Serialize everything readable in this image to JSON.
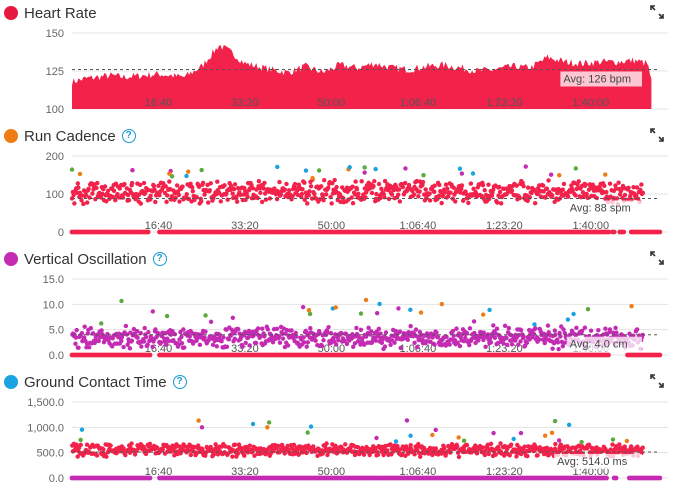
{
  "panels": [
    {
      "title": "Heart Rate",
      "color": "#e8173f",
      "help": false,
      "avg_label": "Avg: 126 bpm",
      "x_ticks": [
        "16:40",
        "33:20",
        "50:00",
        "1:06:40",
        "1:23:20",
        "1:40:00"
      ]
    },
    {
      "title": "Run Cadence",
      "color": "#ee7b14",
      "help": true,
      "avg_label": "Avg: 88 spm",
      "x_ticks": [
        "16:40",
        "33:20",
        "50:00",
        "1:06:40",
        "1:23:20",
        "1:40:00"
      ]
    },
    {
      "title": "Vertical Oscillation",
      "color": "#c42bb3",
      "help": true,
      "avg_label": "Avg: 4.0 cm",
      "x_ticks": [
        "16:40",
        "33:20",
        "50:00",
        "1:06:40",
        "1:23:20",
        "1:40:00"
      ]
    },
    {
      "title": "Ground Contact Time",
      "color": "#1aa3e0",
      "help": true,
      "avg_label": "Avg: 514.0 ms",
      "x_ticks": [
        "16:40",
        "33:20",
        "50:00",
        "1:06:40",
        "1:23:20",
        "1:40:00"
      ]
    }
  ],
  "icons": {
    "expand": "expand-icon",
    "help": "help-icon"
  },
  "chart_data": [
    {
      "type": "area",
      "title": "Heart Rate",
      "y_ticks": [
        "150",
        "125",
        "100"
      ],
      "ylim": [
        100,
        150
      ],
      "xlim_seconds": [
        0,
        6800
      ],
      "average": 126,
      "unit": "bpm",
      "series": [
        {
          "color": "#f2224b",
          "x_seconds": [
            0,
            150,
            300,
            450,
            600,
            800,
            1000,
            1150,
            1300,
            1500,
            1700,
            1850,
            2000,
            2150,
            2300,
            2500,
            2700,
            2900,
            3100,
            3300,
            3500,
            3700,
            3900,
            4100,
            4300,
            4500,
            4700,
            4900,
            5100,
            5300,
            5500,
            5700,
            5900,
            6100,
            6300,
            6500,
            6650,
            6700
          ],
          "values": [
            118,
            120,
            121,
            122,
            121,
            122,
            123,
            122,
            121,
            128,
            142,
            137,
            130,
            128,
            126,
            124,
            128,
            124,
            129,
            127,
            130,
            127,
            126,
            128,
            129,
            127,
            125,
            126,
            128,
            127,
            134,
            131,
            130,
            131,
            131,
            132,
            130,
            120
          ]
        }
      ]
    },
    {
      "type": "scatter",
      "title": "Run Cadence",
      "y_ticks": [
        "200",
        "100",
        "0"
      ],
      "ylim": [
        0,
        200
      ],
      "xlim_seconds": [
        0,
        6800
      ],
      "average": 88,
      "unit": "spm",
      "typical_range": [
        70,
        140
      ],
      "zero_line": true
    },
    {
      "type": "scatter",
      "title": "Vertical Oscillation",
      "y_ticks": [
        "15.0",
        "10.0",
        "5.0",
        "0.0"
      ],
      "ylim": [
        0,
        15
      ],
      "xlim_seconds": [
        0,
        6800
      ],
      "average": 4.0,
      "unit": "cm",
      "typical_range": [
        1,
        6
      ],
      "zero_line": true
    },
    {
      "type": "scatter",
      "title": "Ground Contact Time",
      "y_ticks": [
        "1,500.0",
        "1,000.0",
        "500.0",
        "0.0"
      ],
      "ylim": [
        0,
        1500
      ],
      "xlim_seconds": [
        0,
        6800
      ],
      "average": 514.0,
      "unit": "ms",
      "typical_range": [
        400,
        700
      ],
      "zero_line": true
    }
  ]
}
